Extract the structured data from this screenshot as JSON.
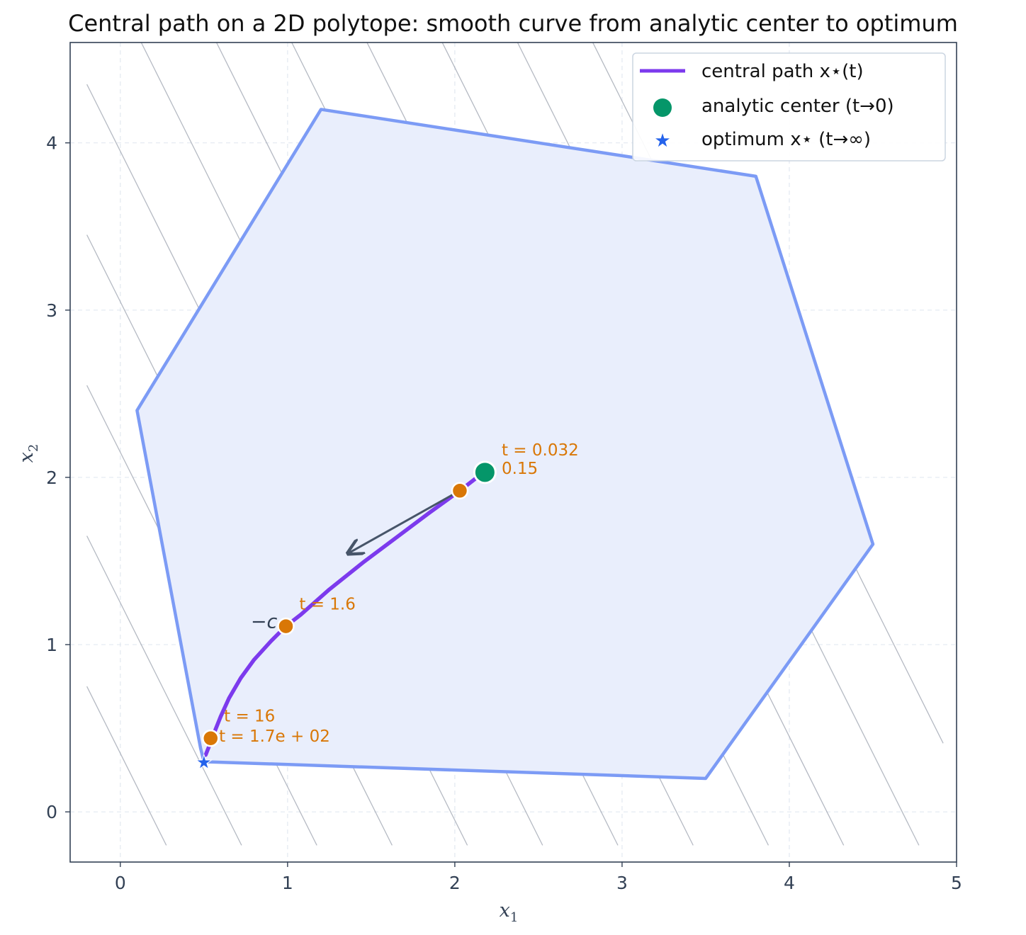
{
  "chart_data": {
    "type": "line",
    "title": "Central path on a 2D polytope: smooth curve from analytic center to optimum",
    "xlabel": "x",
    "xlabel_sub": "1",
    "ylabel": "x",
    "ylabel_sub": "2",
    "xlim": [
      -0.3,
      5.0
    ],
    "ylim": [
      -0.3,
      4.6
    ],
    "xticks": [
      0,
      1,
      2,
      3,
      4,
      5
    ],
    "yticks": [
      0,
      1,
      2,
      3,
      4
    ],
    "grid": true,
    "legend_placement": "top-right",
    "polytope": {
      "vertices": [
        [
          0.5,
          0.3
        ],
        [
          3.5,
          0.2
        ],
        [
          4.5,
          1.6
        ],
        [
          3.8,
          3.8
        ],
        [
          1.2,
          4.2
        ],
        [
          0.1,
          2.4
        ],
        [
          0.48,
          0.38
        ]
      ],
      "fill_color": "#e9eefc",
      "edge_color": "#7c9bf5"
    },
    "objective_contours": {
      "direction": [
        2,
        1
      ],
      "levels": [
        0.35,
        1.25,
        2.15,
        3.05,
        3.95,
        4.85,
        5.75,
        6.65,
        7.55,
        8.45,
        9.35,
        10.25
      ],
      "color": "#9ca3af"
    },
    "series": [
      {
        "name": "central path x⋆(t)",
        "color": "#7c3aed",
        "x": [
          2.18,
          2.12,
          2.03,
          1.85,
          1.65,
          1.45,
          1.25,
          1.08,
          0.99,
          0.9,
          0.8,
          0.72,
          0.65,
          0.6,
          0.56,
          0.53,
          0.51
        ],
        "y": [
          2.03,
          1.99,
          1.92,
          1.79,
          1.64,
          1.49,
          1.33,
          1.18,
          1.11,
          1.02,
          0.91,
          0.8,
          0.68,
          0.57,
          0.47,
          0.39,
          0.34
        ]
      }
    ],
    "analytic_center": {
      "name": "analytic center  (t→0)",
      "x": 2.18,
      "y": 2.03,
      "color": "#059669"
    },
    "optimum": {
      "name": "optimum  x⋆  (t→∞)",
      "x": 0.5,
      "y": 0.3,
      "color": "#2563eb"
    },
    "t_markers": [
      {
        "label": "t = 0.032",
        "x": 2.18,
        "y": 2.03,
        "lx": 2.28,
        "ly": 2.13
      },
      {
        "label": "0.15",
        "x": 2.03,
        "y": 1.92,
        "lx": 2.28,
        "ly": 2.02
      },
      {
        "label": "t = 1.6",
        "x": 0.99,
        "y": 1.11,
        "lx": 1.07,
        "ly": 1.21
      },
      {
        "label": "t = 16",
        "x": 0.54,
        "y": 0.44,
        "lx": 0.62,
        "ly": 0.54
      },
      {
        "label": "t = 1.7e + 02",
        "x": 0.54,
        "y": 0.44,
        "lx": 0.59,
        "ly": 0.42
      }
    ],
    "marker_color": "#d97706",
    "neg_c_arrow": {
      "label": "−c",
      "from": [
        2.03,
        1.92
      ],
      "to": [
        1.37,
        1.55
      ],
      "label_pos": [
        0.78,
        1.1
      ],
      "color": "#475569"
    }
  }
}
